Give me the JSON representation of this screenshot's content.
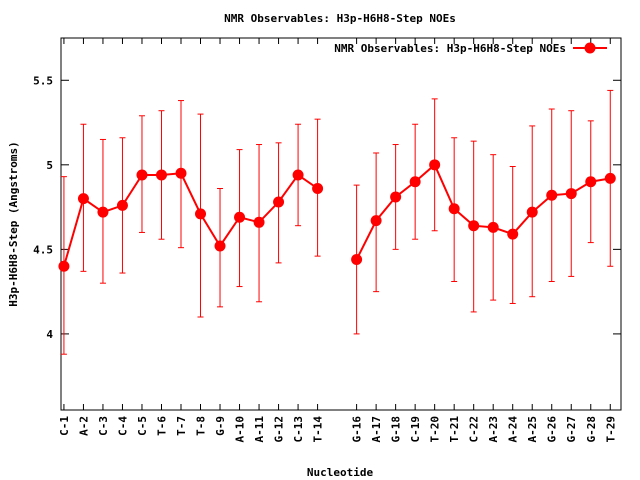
{
  "chart_data": {
    "type": "line",
    "title": "NMR Observables: H3p-H6H8-Step NOEs",
    "xlabel": "Nucleotide",
    "ylabel": "H3p-H6H8-Step (Angstroms)",
    "ylim": [
      3.55,
      5.75
    ],
    "yticks": [
      4,
      4.5,
      5,
      5.5
    ],
    "ytick_labels": [
      "4",
      "4.5",
      "5",
      "5.5"
    ],
    "grid": false,
    "legend_position": "top-right",
    "colors": {
      "series": "#ff0000",
      "axes": "#000000",
      "background": "#ffffff"
    },
    "categories": [
      "C-1",
      "A-2",
      "C-3",
      "C-4",
      "C-5",
      "T-6",
      "T-7",
      "T-8",
      "G-9",
      "A-10",
      "A-11",
      "G-12",
      "C-13",
      "T-14",
      "G-16",
      "A-17",
      "G-18",
      "C-19",
      "T-20",
      "T-21",
      "C-22",
      "A-23",
      "A-24",
      "A-25",
      "G-26",
      "G-27",
      "G-28",
      "T-29"
    ],
    "x": [
      1,
      2,
      3,
      4,
      5,
      6,
      7,
      8,
      9,
      10,
      11,
      12,
      13,
      14,
      16,
      17,
      18,
      19,
      20,
      21,
      22,
      23,
      24,
      25,
      26,
      27,
      28,
      29
    ],
    "series": [
      {
        "name": "NMR Observables: H3p-H6H8-Step NOEs",
        "values": [
          4.4,
          4.8,
          4.72,
          4.76,
          4.94,
          4.94,
          4.95,
          4.71,
          4.52,
          4.69,
          4.66,
          4.78,
          4.94,
          4.86,
          4.44,
          4.67,
          4.81,
          4.9,
          5.0,
          4.74,
          4.64,
          4.63,
          4.59,
          4.72,
          4.82,
          4.83,
          4.9,
          4.92
        ],
        "error_low": [
          3.88,
          4.37,
          4.3,
          4.36,
          4.6,
          4.56,
          4.51,
          4.1,
          4.16,
          4.28,
          4.19,
          4.42,
          4.64,
          4.46,
          4.0,
          4.25,
          4.5,
          4.56,
          4.61,
          4.31,
          4.13,
          4.2,
          4.18,
          4.22,
          4.31,
          4.34,
          4.54,
          4.4
        ],
        "error_high": [
          4.93,
          5.24,
          5.15,
          5.16,
          5.29,
          5.32,
          5.38,
          5.3,
          4.86,
          5.09,
          5.12,
          5.13,
          5.24,
          5.27,
          4.88,
          5.07,
          5.12,
          5.24,
          5.39,
          5.16,
          5.14,
          5.06,
          4.99,
          5.23,
          5.33,
          5.32,
          5.26,
          5.44
        ]
      }
    ]
  }
}
